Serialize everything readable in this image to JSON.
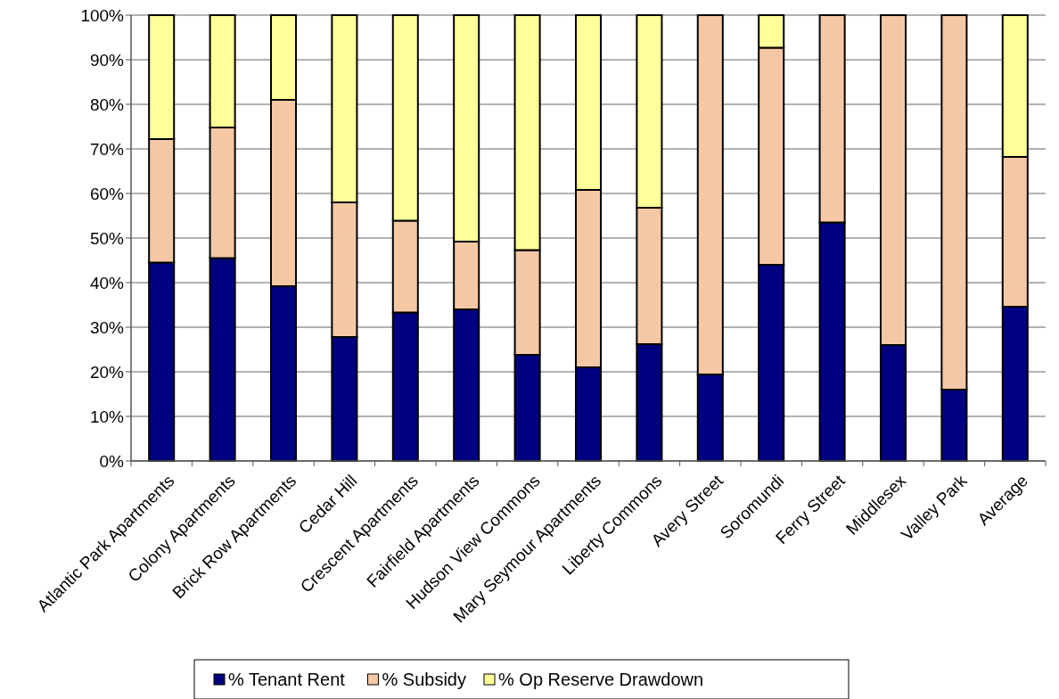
{
  "chart_data": {
    "type": "bar",
    "stacked": true,
    "categories": [
      "Atlantic Park Apartments",
      "Colony Apartments",
      "Brick Row Apartments",
      "Cedar Hill",
      "Crescent Apartments",
      "Fairfield Apartments",
      "Hudson View Commons",
      "Mary Seymour Apartments",
      "Liberty Commons",
      "Avery Street",
      "Soromundi",
      "Ferry Street",
      "Middlesex",
      "Valley Park",
      "Average"
    ],
    "series": [
      {
        "name": "% Tenant Rent",
        "color": "#000080",
        "values": [
          44.5,
          45.5,
          39.2,
          27.8,
          33.3,
          34,
          23.8,
          21,
          26.2,
          19.4,
          44,
          53.5,
          26,
          16,
          34.6
        ]
      },
      {
        "name": "% Subsidy",
        "color": "#f5c8a5",
        "values": [
          27.7,
          29.3,
          41.8,
          30.2,
          20.6,
          15.2,
          23.5,
          39.8,
          30.6,
          80.6,
          48.7,
          46.5,
          74,
          84,
          33.6
        ]
      },
      {
        "name": "% Op Reserve Drawdown",
        "color": "#ffff99",
        "values": [
          27.8,
          25.2,
          19,
          42,
          46.1,
          50.8,
          52.7,
          39.2,
          43.2,
          0,
          7.3,
          0,
          0,
          0,
          31.8
        ]
      }
    ],
    "ylim": [
      0,
      100
    ],
    "yticks": [
      {
        "value": 0,
        "label": "0%"
      },
      {
        "value": 10,
        "label": "10%"
      },
      {
        "value": 20,
        "label": "20%"
      },
      {
        "value": 30,
        "label": "30%"
      },
      {
        "value": 40,
        "label": "40%"
      },
      {
        "value": 50,
        "label": "50%"
      },
      {
        "value": 60,
        "label": "60%"
      },
      {
        "value": 70,
        "label": "70%"
      },
      {
        "value": 80,
        "label": "80%"
      },
      {
        "value": 90,
        "label": "90%"
      },
      {
        "value": 100,
        "label": "100%"
      }
    ],
    "grid": "y",
    "legend": "bottom"
  }
}
